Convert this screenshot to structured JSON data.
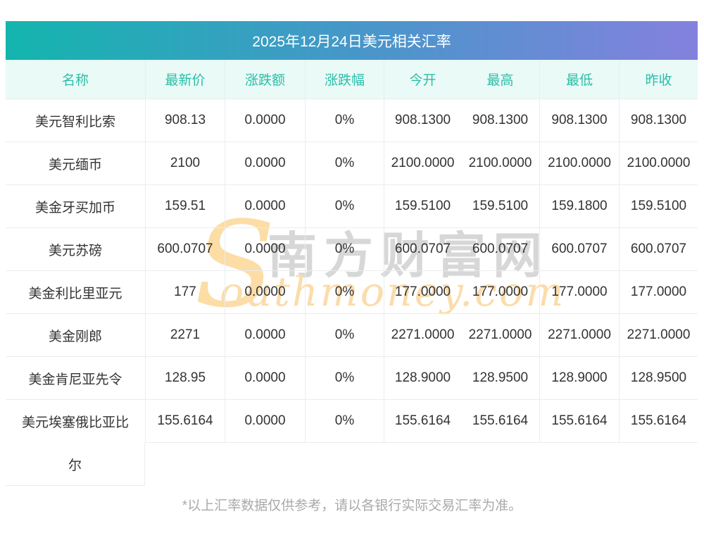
{
  "page": {
    "title": "2025年12月24日美元相关汇率",
    "footer_note": "*以上汇率数据仅供参考，请以各银行实际交易汇率为准。"
  },
  "colors": {
    "title_gradient_left": "#14b5ae",
    "title_gradient_mid": "#4697c9",
    "title_gradient_right": "#8481de",
    "header_bg": "#e9faf7",
    "header_text": "#2bbea7",
    "cell_text": "#333333",
    "grid_border": "#e9edf0",
    "footer_text": "#a9a9a9",
    "watermark_orange": "#fbdcab",
    "watermark_gray": "#d7d7d7"
  },
  "watermark": {
    "s_glyph": "S",
    "cn_text": "南方财富网",
    "en_text": "outhmoney.com"
  },
  "table": {
    "headers": [
      "名称",
      "最新价",
      "涨跌额",
      "涨跌幅",
      "今开",
      "最高",
      "最低",
      "昨收"
    ],
    "rows": [
      {
        "name": "美元智利比索",
        "latest": "908.13",
        "change": "0.0000",
        "pct": "0%",
        "open": "908.1300",
        "high": "908.1300",
        "low": "908.1300",
        "prev": "908.1300"
      },
      {
        "name": "美元缅币",
        "latest": "2100",
        "change": "0.0000",
        "pct": "0%",
        "open": "2100.0000",
        "high": "2100.0000",
        "low": "2100.0000",
        "prev": "2100.0000"
      },
      {
        "name": "美金牙买加币",
        "latest": "159.51",
        "change": "0.0000",
        "pct": "0%",
        "open": "159.5100",
        "high": "159.5100",
        "low": "159.1800",
        "prev": "159.5100"
      },
      {
        "name": "美元苏磅",
        "latest": "600.0707",
        "change": "0.0000",
        "pct": "0%",
        "open": "600.0707",
        "high": "600.0707",
        "low": "600.0707",
        "prev": "600.0707"
      },
      {
        "name": "美金利比里亚元",
        "latest": "177",
        "change": "0.0000",
        "pct": "0%",
        "open": "177.0000",
        "high": "177.0000",
        "low": "177.0000",
        "prev": "177.0000"
      },
      {
        "name": "美金刚郎",
        "latest": "2271",
        "change": "0.0000",
        "pct": "0%",
        "open": "2271.0000",
        "high": "2271.0000",
        "low": "2271.0000",
        "prev": "2271.0000"
      },
      {
        "name": "美金肯尼亚先令",
        "latest": "128.95",
        "change": "0.0000",
        "pct": "0%",
        "open": "128.9000",
        "high": "128.9500",
        "low": "128.9000",
        "prev": "128.9500"
      },
      {
        "name": "美元埃塞俄比亚比尔",
        "name_line1": "美元埃塞俄比亚比",
        "name_line2": "尔",
        "latest": "155.6164",
        "change": "0.0000",
        "pct": "0%",
        "open": "155.6164",
        "high": "155.6164",
        "low": "155.6164",
        "prev": "155.6164"
      }
    ]
  }
}
